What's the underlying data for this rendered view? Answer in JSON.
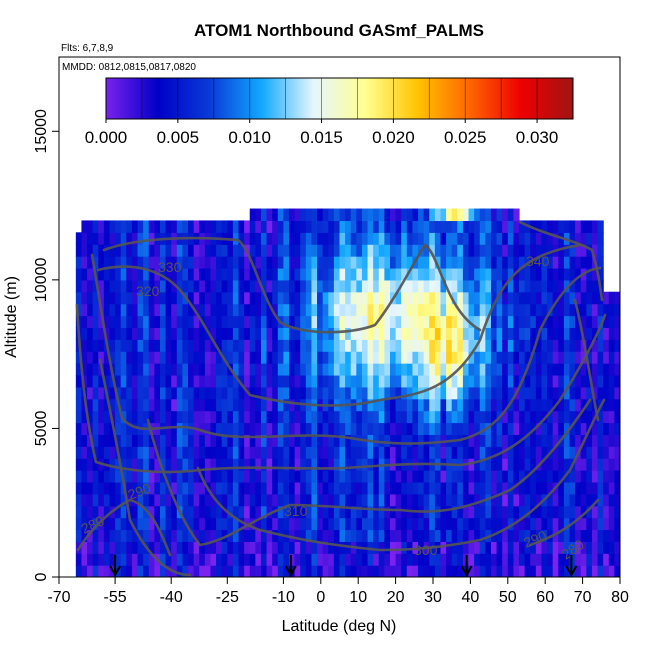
{
  "chart_data": {
    "type": "heatmap",
    "title": "ATOM1 Northbound GASmf_PALMS",
    "annotations": [
      "Flts: 6,7,8,9",
      "MMDD: 0812,0815,0817,0820"
    ],
    "xlabel": "Latitude (deg N)",
    "ylabel": "Altitude (m)",
    "xlim": [
      -70,
      80
    ],
    "ylim": [
      0,
      17500
    ],
    "x_ticks": [
      -70,
      -55,
      -40,
      -25,
      -10,
      0,
      10,
      20,
      30,
      40,
      50,
      60,
      70,
      80
    ],
    "x_tick_labels": [
      "-70",
      "-55",
      "-40",
      "-25",
      "-10",
      "0",
      "10",
      "20",
      "30",
      "40",
      "50",
      "60",
      "70",
      "80"
    ],
    "y_ticks": [
      0,
      5000,
      10000,
      15000
    ],
    "y_tick_labels": [
      "0",
      "5000",
      "10000",
      "15000"
    ],
    "colorbar": {
      "range": [
        0,
        0.0325
      ],
      "ticks": [
        0,
        0.005,
        0.01,
        0.015,
        0.02,
        0.025,
        0.03
      ],
      "tick_labels": [
        "0.000",
        "0.005",
        "0.010",
        "0.015",
        "0.020",
        "0.025",
        "0.030"
      ],
      "colors": [
        "#7b22ee",
        "#0000c8",
        "#0a3ad8",
        "#12a8ff",
        "#e6f6ff",
        "#ffff90",
        "#ffc400",
        "#ff6600",
        "#ee0000",
        "#a01414"
      ]
    },
    "contour_labels": [
      "330",
      "320",
      "340",
      "310",
      "300",
      "290",
      "280",
      "280",
      "290"
    ],
    "flight_marker_latitudes": [
      -55,
      -8,
      39,
      67
    ]
  }
}
